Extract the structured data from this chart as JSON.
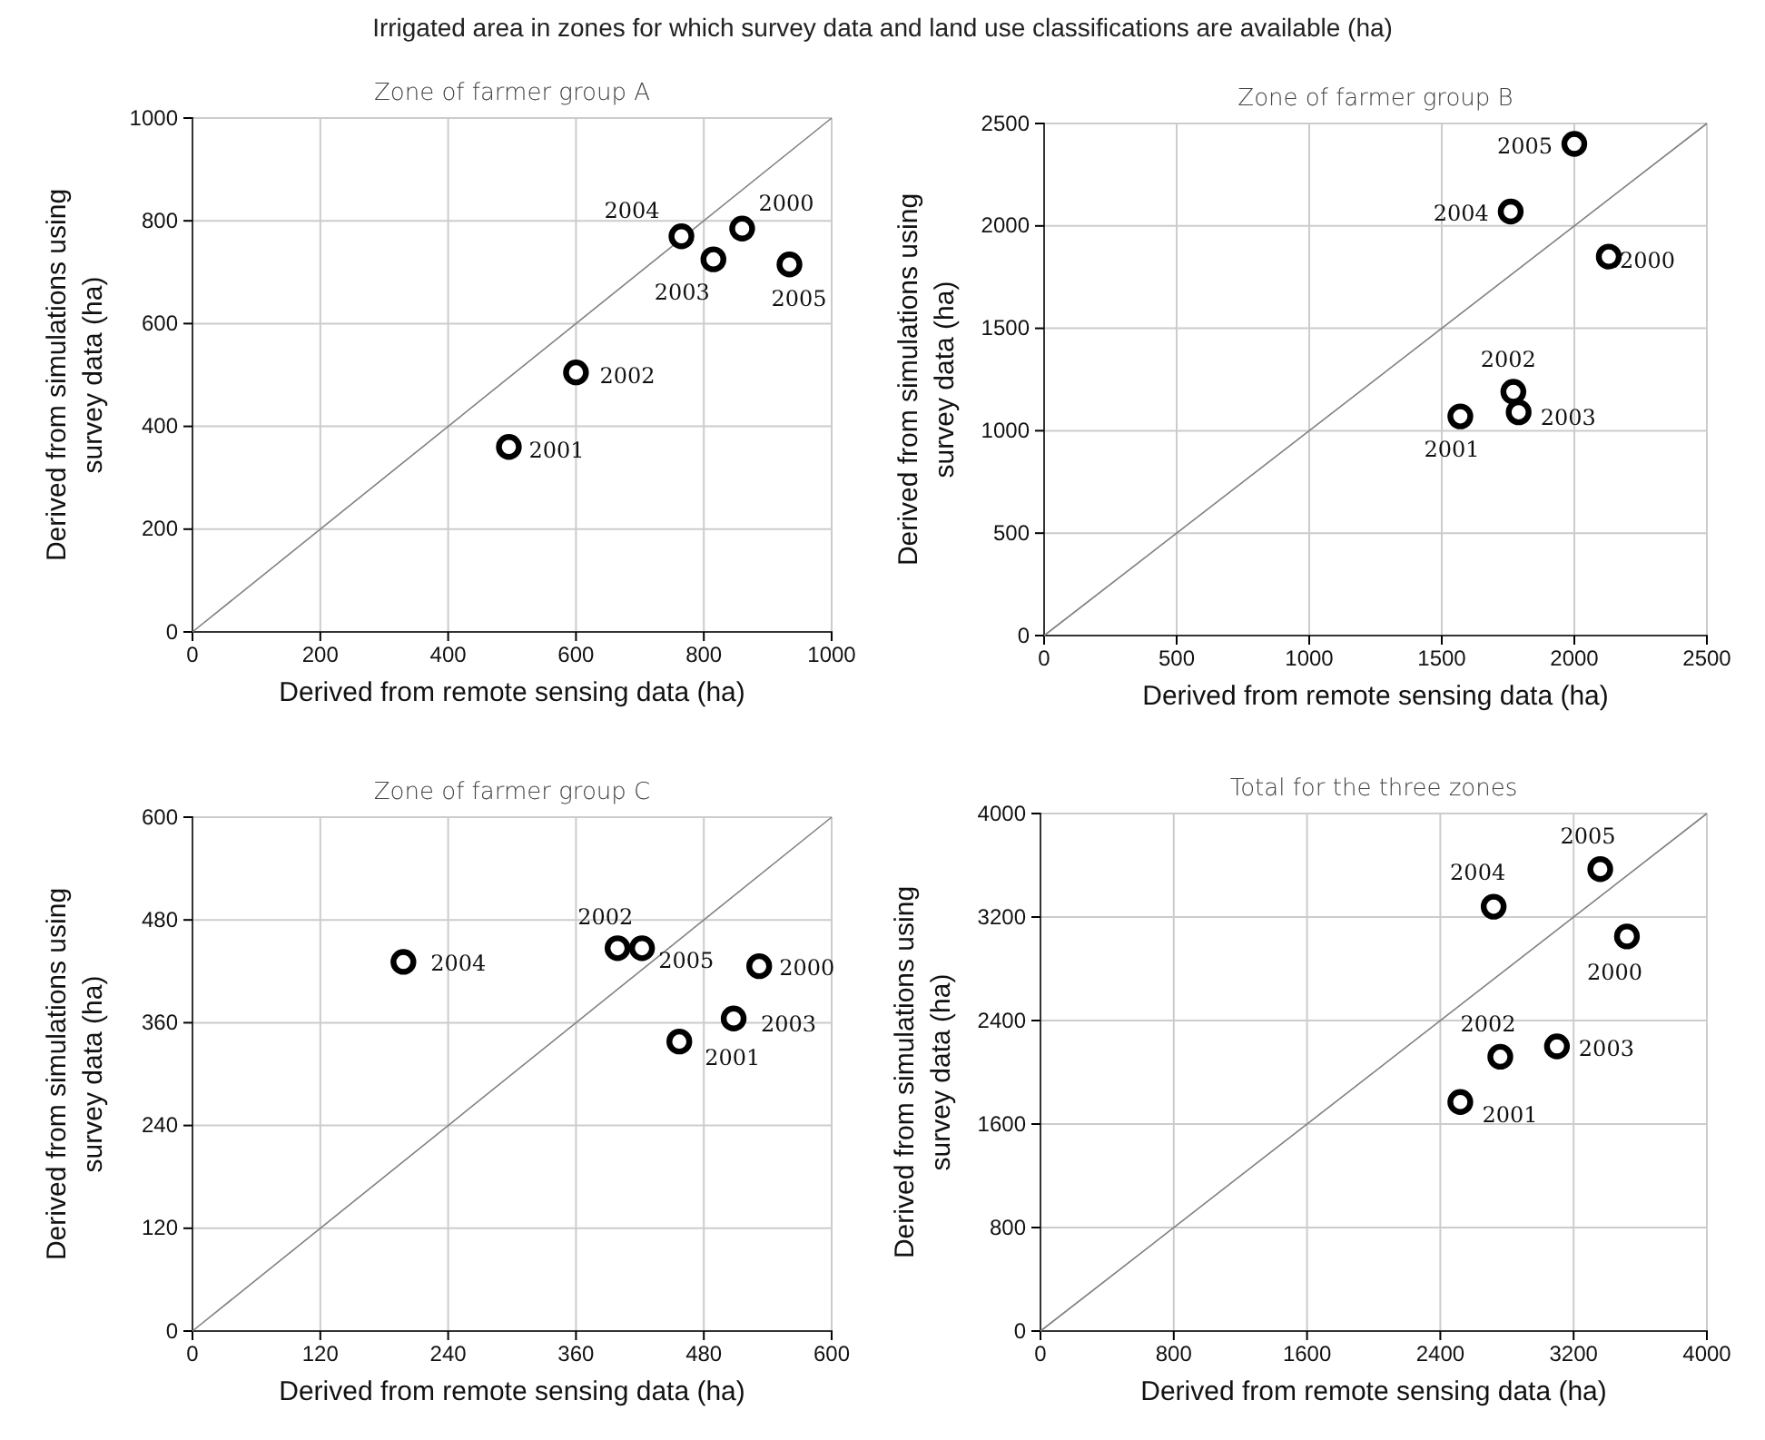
{
  "chart_data": [
    {
      "type": "scatter",
      "title": "Irrigated area in zones for which survey data and land use classifications are available (ha)",
      "subtitle": "Zone of farmer group A",
      "xlabel": "Derived from remote sensing data (ha)",
      "ylabel": "Derived from simulations using survey data (ha)",
      "xlim": [
        0,
        1000
      ],
      "ylim": [
        0,
        1000
      ],
      "xticks": [
        0,
        200,
        400,
        600,
        800,
        1000
      ],
      "yticks": [
        0,
        200,
        400,
        600,
        800,
        1000
      ],
      "grid": true,
      "series": [
        {
          "type": "line",
          "color": "#808080",
          "x": [
            0,
            1000
          ],
          "values": [
            0,
            1000
          ]
        },
        {
          "marker": "circle",
          "color": "#000000",
          "x": [
            860,
            495,
            600,
            815,
            765,
            934
          ],
          "values": [
            785,
            360,
            505,
            725,
            770,
            715
          ]
        }
      ],
      "annotations": [
        {
          "text": "2000",
          "x": 860,
          "y": 785
        },
        {
          "text": "2001",
          "x": 495,
          "y": 360
        },
        {
          "text": "2002",
          "x": 600,
          "y": 505
        },
        {
          "text": "2003",
          "x": 815,
          "y": 725
        },
        {
          "text": "2004",
          "x": 765,
          "y": 770
        },
        {
          "text": "2005",
          "x": 934,
          "y": 715
        }
      ]
    },
    {
      "type": "scatter",
      "subtitle": "Zone of farmer group B",
      "xlabel": "Derived from remote sensing data (ha)",
      "ylabel": "Derived from simulations using survey data (ha)",
      "xlim": [
        0,
        2500
      ],
      "ylim": [
        0,
        2500
      ],
      "xticks": [
        0,
        500,
        1000,
        1500,
        2000,
        2500
      ],
      "yticks": [
        0,
        500,
        1000,
        1500,
        2000,
        2500
      ],
      "grid": true,
      "series": [
        {
          "type": "line",
          "color": "#808080",
          "x": [
            0,
            2500
          ],
          "values": [
            0,
            2500
          ]
        },
        {
          "marker": "circle",
          "color": "#000000",
          "x": [
            2130,
            1570,
            1770,
            1790,
            1760,
            2000
          ],
          "values": [
            1850,
            1070,
            1190,
            1090,
            2070,
            2400
          ]
        }
      ],
      "annotations": [
        {
          "text": "2000",
          "x": 2130,
          "y": 1850
        },
        {
          "text": "2001",
          "x": 1570,
          "y": 1070
        },
        {
          "text": "2002",
          "x": 1770,
          "y": 1190
        },
        {
          "text": "2003",
          "x": 1790,
          "y": 1090
        },
        {
          "text": "2004",
          "x": 1760,
          "y": 2070
        },
        {
          "text": "2005",
          "x": 2000,
          "y": 2400
        }
      ]
    },
    {
      "type": "scatter",
      "subtitle": "Zone of farmer group C",
      "xlabel": "Derived from remote sensing data (ha)",
      "ylabel": "Derived from simulations using survey data (ha)",
      "xlim": [
        0,
        600
      ],
      "ylim": [
        0,
        600
      ],
      "xticks": [
        0,
        120,
        240,
        360,
        480,
        600
      ],
      "yticks": [
        0,
        120,
        240,
        360,
        480,
        600
      ],
      "grid": true,
      "series": [
        {
          "type": "line",
          "color": "#808080",
          "x": [
            0,
            600
          ],
          "values": [
            0,
            600
          ]
        },
        {
          "marker": "circle",
          "color": "#000000",
          "x": [
            532,
            457,
            399,
            508,
            198,
            422
          ],
          "values": [
            426,
            338,
            447,
            365,
            431,
            447
          ]
        }
      ],
      "annotations": [
        {
          "text": "2000",
          "x": 532,
          "y": 426
        },
        {
          "text": "2001",
          "x": 457,
          "y": 338
        },
        {
          "text": "2002",
          "x": 399,
          "y": 447
        },
        {
          "text": "2003",
          "x": 508,
          "y": 365
        },
        {
          "text": "2004",
          "x": 198,
          "y": 431
        },
        {
          "text": "2005",
          "x": 422,
          "y": 447
        }
      ]
    },
    {
      "type": "scatter",
      "subtitle": "Total for the three zones",
      "xlabel": "Derived from remote sensing data (ha)",
      "ylabel": "Derived from simulations using survey data (ha)",
      "xlim": [
        0,
        4000
      ],
      "ylim": [
        0,
        4000
      ],
      "xticks": [
        0,
        800,
        1600,
        2400,
        3200,
        4000
      ],
      "yticks": [
        0,
        800,
        1600,
        2400,
        3200,
        4000
      ],
      "grid": true,
      "series": [
        {
          "type": "line",
          "color": "#808080",
          "x": [
            0,
            4000
          ],
          "values": [
            0,
            4000
          ]
        },
        {
          "marker": "circle",
          "color": "#000000",
          "x": [
            3520,
            2520,
            2760,
            3100,
            2720,
            3360
          ],
          "values": [
            3050,
            1770,
            2120,
            2200,
            3280,
            3570
          ]
        }
      ],
      "annotations": [
        {
          "text": "2000",
          "x": 3520,
          "y": 3050
        },
        {
          "text": "2001",
          "x": 2520,
          "y": 1770
        },
        {
          "text": "2002",
          "x": 2760,
          "y": 2120
        },
        {
          "text": "2003",
          "x": 3100,
          "y": 2200
        },
        {
          "text": "2004",
          "x": 2720,
          "y": 3280
        },
        {
          "text": "2005",
          "x": 3360,
          "y": 3570
        }
      ]
    }
  ]
}
